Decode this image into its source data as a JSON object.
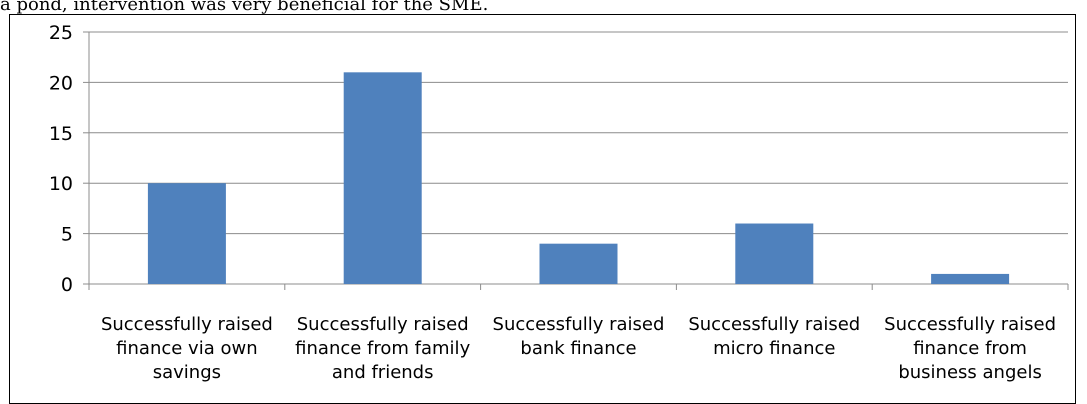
{
  "top_text": "a pond, intervention was very beneficial for the SME.",
  "chart_data": {
    "type": "bar",
    "categories": [
      [
        "Successfully raised",
        "finance via own",
        "savings"
      ],
      [
        "Successfully raised",
        "finance from family",
        "and friends"
      ],
      [
        "Successfully raised",
        "bank finance"
      ],
      [
        "Successfully raised",
        "micro finance"
      ],
      [
        "Successfully raised",
        "finance from",
        "business angels"
      ]
    ],
    "values": [
      10,
      21,
      4,
      6,
      1
    ],
    "ylim": [
      0,
      25
    ],
    "yticks": [
      0,
      5,
      10,
      15,
      20,
      25
    ],
    "title": "",
    "xlabel": "",
    "ylabel": "",
    "grid": true,
    "bar_color": "#4F81BD",
    "grid_color": "#8C8C8C",
    "axis_color": "#8C8C8C"
  }
}
